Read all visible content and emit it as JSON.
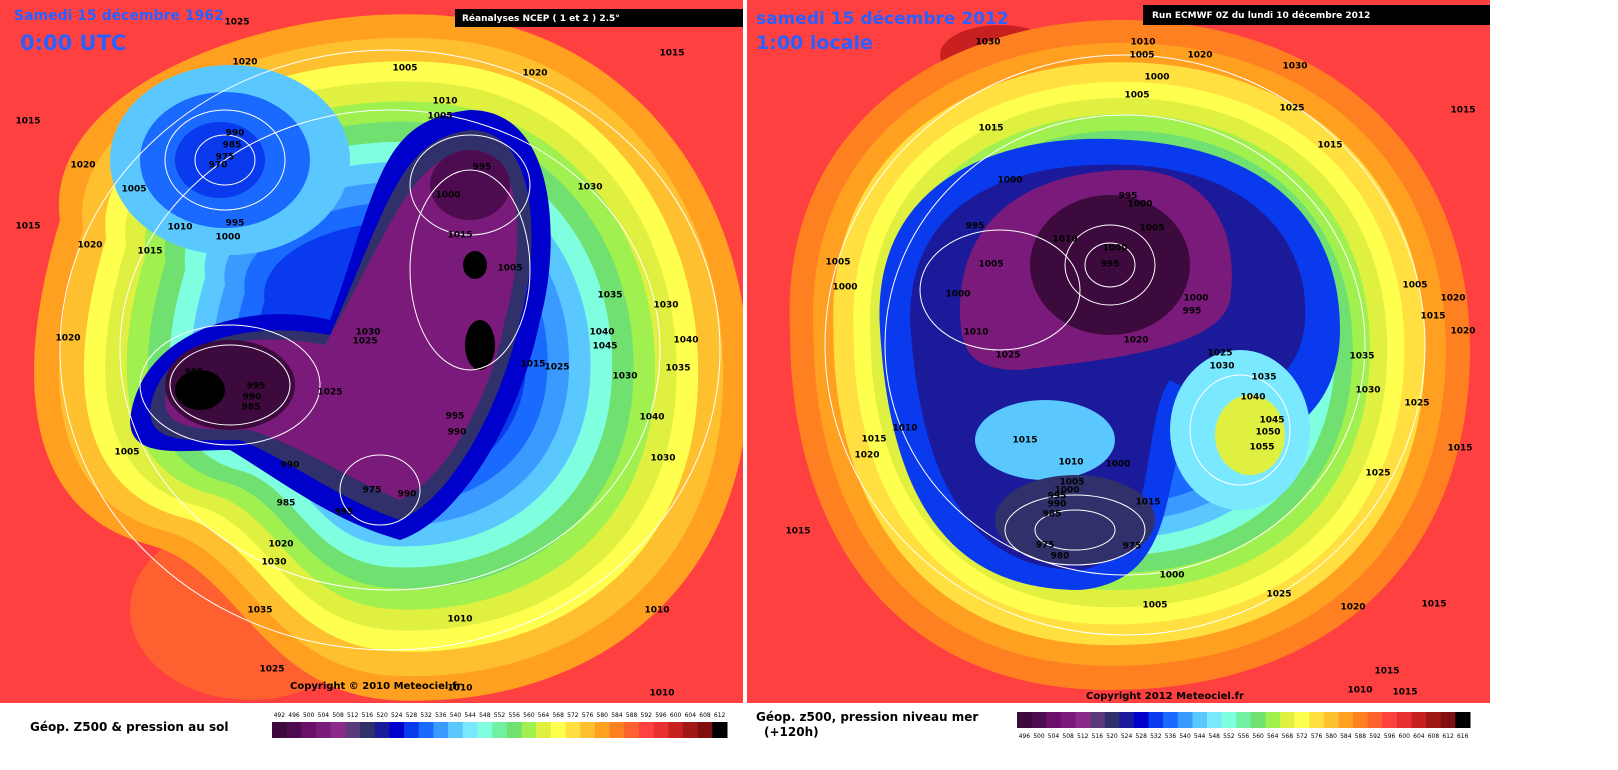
{
  "palette": [
    "#3c0a3c",
    "#4e0c50",
    "#6a1068",
    "#7a1a7a",
    "#8c2a8c",
    "#5a3a7a",
    "#30306a",
    "#1a1a9a",
    "#0000cc",
    "#0a3aee",
    "#1a6aff",
    "#3a9aff",
    "#5ac8ff",
    "#7ae8ff",
    "#80ffe0",
    "#70f0a0",
    "#70e070",
    "#a0f050",
    "#e0f040",
    "#ffff50",
    "#ffe040",
    "#ffc030",
    "#ffa020",
    "#ff8020",
    "#ff6030",
    "#ff4040",
    "#e83030",
    "#c82020",
    "#a01818",
    "#801010",
    "#000000"
  ],
  "maps": [
    {
      "title": "Samedi 15 décembre 1962",
      "subtitle": "0:00 UTC",
      "source": "Réanalyses NCEP ( 1 et 2 ) 2.5°",
      "copyright": "Copyright © 2010 Meteociel.fr",
      "caption": "Géop. Z500 & pression au sol",
      "legend_ticks": [
        492,
        496,
        500,
        504,
        508,
        512,
        516,
        520,
        524,
        528,
        532,
        536,
        540,
        544,
        548,
        552,
        556,
        560,
        564,
        568,
        572,
        576,
        580,
        584,
        588,
        592,
        596,
        600,
        604,
        608,
        612
      ],
      "pressure_labels": [
        1025,
        1020,
        1005,
        1020,
        1015,
        1015,
        1020,
        990,
        985,
        975,
        970,
        1005,
        1010,
        995,
        1000,
        1010,
        1005,
        995,
        1000,
        1015,
        1005,
        1030,
        1035,
        1040,
        1045,
        1030,
        1040,
        1035,
        1030,
        1040,
        1030,
        995,
        995,
        990,
        985,
        1030,
        1025,
        1025,
        990,
        985,
        975,
        990,
        995,
        995,
        990,
        1005,
        1020,
        1030,
        1035,
        1025,
        1010,
        1010,
        1010,
        1010,
        1015,
        1025,
        1020,
        1015,
        1015,
        1020
      ]
    },
    {
      "title": "samedi 15 décembre 2012",
      "subtitle": "1:00 locale",
      "source": "Run ECMWF 0Z du lundi 10 décembre 2012",
      "copyright": "Copyright 2012 Meteociel.fr",
      "caption": "Géop. z500, pression niveau mer",
      "note": "(+120h)",
      "legend_ticks": [
        496,
        500,
        504,
        508,
        512,
        516,
        520,
        524,
        528,
        532,
        536,
        540,
        544,
        548,
        552,
        556,
        560,
        564,
        568,
        572,
        576,
        580,
        584,
        588,
        592,
        596,
        600,
        604,
        608,
        612,
        616
      ],
      "pressure_labels": [
        1030,
        1010,
        1005,
        1020,
        1030,
        1000,
        1005,
        1025,
        1015,
        1015,
        1015,
        995,
        1000,
        1000,
        1005,
        995,
        1010,
        1000,
        995,
        1005,
        1005,
        1000,
        1000,
        1000,
        995,
        1010,
        1020,
        1025,
        1025,
        1030,
        1035,
        1040,
        1045,
        1050,
        1055,
        1035,
        1030,
        1025,
        1015,
        1025,
        1010,
        1015,
        1020,
        1015,
        1010,
        1000,
        1005,
        1000,
        995,
        990,
        985,
        975,
        975,
        980,
        1015,
        1000,
        1005,
        1025,
        1020,
        1015,
        1015,
        1015,
        1015,
        1010,
        1005,
        1020,
        1020,
        1015
      ]
    }
  ]
}
